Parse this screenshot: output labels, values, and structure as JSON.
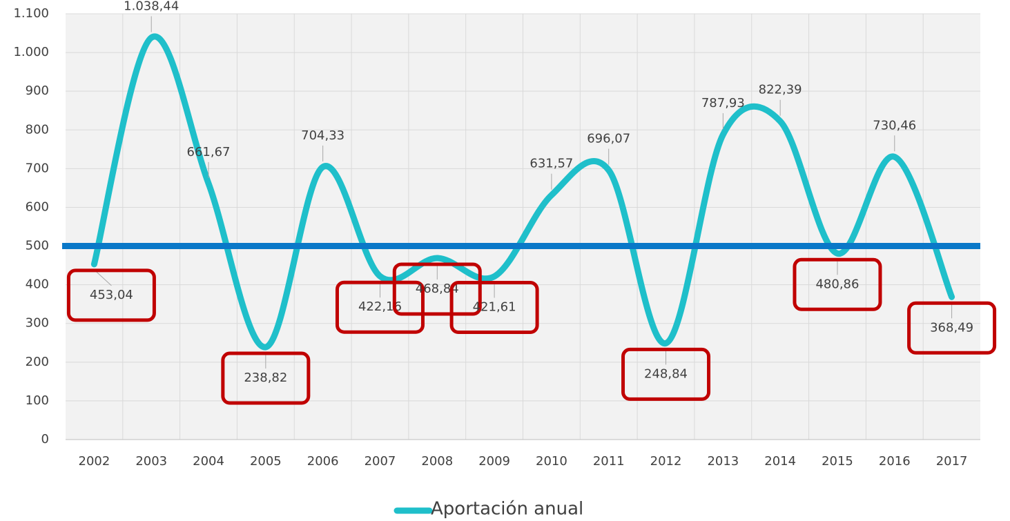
{
  "chart_data": {
    "type": "line",
    "categories": [
      "2002",
      "2003",
      "2004",
      "2005",
      "2006",
      "2007",
      "2008",
      "2009",
      "2010",
      "2011",
      "2012",
      "2013",
      "2014",
      "2015",
      "2016",
      "2017"
    ],
    "series": [
      {
        "name": "Aportación anual",
        "color": "#1fbfca",
        "values": [
          453.04,
          1038.44,
          661.67,
          238.82,
          704.33,
          422.16,
          468.84,
          421.61,
          631.57,
          696.07,
          248.84,
          787.93,
          822.39,
          480.86,
          730.46,
          368.49
        ],
        "value_labels": [
          "453,04",
          "1.038,44",
          "661,67",
          "238,82",
          "704,33",
          "422,16",
          "468,84",
          "421,61",
          "631,57",
          "696,07",
          "248,84",
          "787,93",
          "822,39",
          "480,86",
          "730,46",
          "368,49"
        ]
      }
    ],
    "ylim": [
      0,
      1100
    ],
    "yticks": [
      0,
      100,
      200,
      300,
      400,
      500,
      600,
      700,
      800,
      900,
      {
        "value": 1000,
        "label": "1.000"
      },
      {
        "value": 1100,
        "label": "1.100"
      }
    ],
    "grid": true,
    "smooth": true,
    "reference_line": {
      "value": 500,
      "color": "#0a78c8"
    },
    "highlight_color": "#c00000",
    "legend": "bottom"
  }
}
